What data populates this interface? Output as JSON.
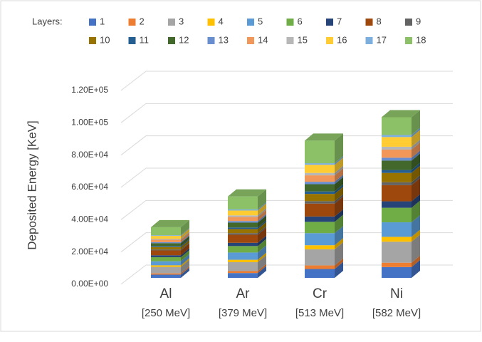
{
  "chart_data": {
    "type": "bar3d_stacked",
    "y_axis_label": "Deposited Energy [KeV]",
    "legend_title": "Layers:",
    "categories": [
      "Al",
      "Ar",
      "Cr",
      "Ni"
    ],
    "category_notes": [
      "[250 MeV]",
      "[379 MeV]",
      "[513 MeV]",
      "[582 MeV]"
    ],
    "ylim": [
      0,
      120000
    ],
    "yticks": [
      {
        "value": 0,
        "label": "0.00E+00"
      },
      {
        "value": 20000,
        "label": "2.00E+04"
      },
      {
        "value": 40000,
        "label": "4.00E+04"
      },
      {
        "value": 60000,
        "label": "6.00E+04"
      },
      {
        "value": 80000,
        "label": "8.00E+04"
      },
      {
        "value": 100000,
        "label": "1.00E+05"
      },
      {
        "value": 120000,
        "label": "1.20E+05"
      }
    ],
    "grid": true,
    "series": [
      {
        "name": "1",
        "color": "#4472c4",
        "values": [
          2000,
          3000,
          5500,
          6700
        ]
      },
      {
        "name": "2",
        "color": "#ed7d31",
        "values": [
          800,
          1200,
          2200,
          2700
        ]
      },
      {
        "name": "3",
        "color": "#a5a5a5",
        "values": [
          4000,
          5500,
          10000,
          13000
        ]
      },
      {
        "name": "4",
        "color": "#ffc000",
        "values": [
          1000,
          1500,
          2500,
          3000
        ]
      },
      {
        "name": "5",
        "color": "#5b9bd5",
        "values": [
          2500,
          4500,
          7500,
          9000
        ]
      },
      {
        "name": "6",
        "color": "#70ad47",
        "values": [
          2500,
          4000,
          7000,
          9000
        ]
      },
      {
        "name": "7",
        "color": "#264478",
        "values": [
          1200,
          2000,
          3300,
          4000
        ]
      },
      {
        "name": "8",
        "color": "#9e480e",
        "values": [
          3000,
          5000,
          8000,
          10000
        ]
      },
      {
        "name": "9",
        "color": "#636363",
        "values": [
          600,
          1000,
          1500,
          1800
        ]
      },
      {
        "name": "10",
        "color": "#997300",
        "values": [
          1500,
          2500,
          4500,
          5800
        ]
      },
      {
        "name": "11",
        "color": "#255e91",
        "values": [
          600,
          1000,
          1500,
          1800
        ]
      },
      {
        "name": "12",
        "color": "#43682b",
        "values": [
          1800,
          3000,
          4500,
          5800
        ]
      },
      {
        "name": "13",
        "color": "#698ed0",
        "values": [
          600,
          1000,
          1500,
          1800
        ]
      },
      {
        "name": "14",
        "color": "#f1975a",
        "values": [
          1500,
          2500,
          4000,
          5000
        ]
      },
      {
        "name": "15",
        "color": "#b7b7b7",
        "values": [
          600,
          1000,
          1500,
          1800
        ]
      },
      {
        "name": "16",
        "color": "#ffcd33",
        "values": [
          1800,
          3000,
          5000,
          6000
        ]
      },
      {
        "name": "17",
        "color": "#7cafdd",
        "values": [
          400,
          700,
          1000,
          1300
        ]
      },
      {
        "name": "18",
        "color": "#8cc168",
        "values": [
          5000,
          8000,
          14000,
          11000
        ]
      }
    ]
  }
}
